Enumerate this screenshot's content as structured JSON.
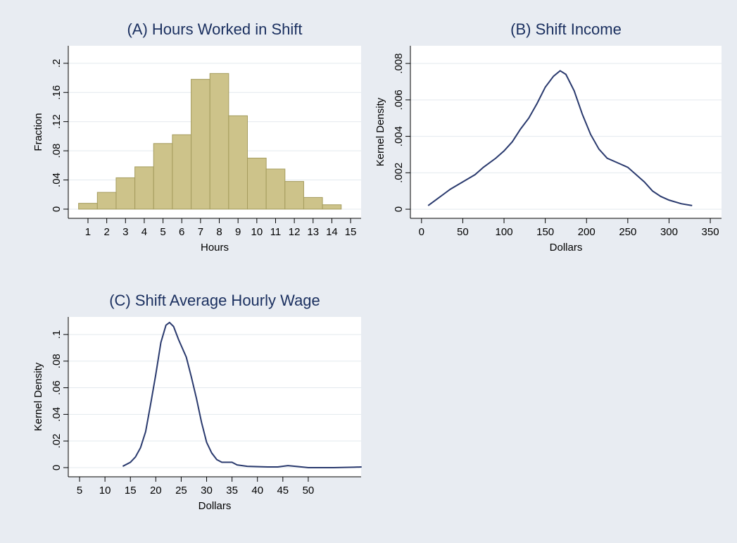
{
  "chart_data": [
    {
      "type": "histogram",
      "title": "(A) Hours Worked in Shift",
      "xlabel": "Hours",
      "ylabel": "Fraction",
      "bins": [
        0.5,
        1.5,
        2.5,
        3.5,
        4.5,
        5.5,
        6.5,
        7.5,
        8.5,
        9.5,
        10.5,
        11.5,
        12.5,
        13.5,
        14.5
      ],
      "values": [
        0.008,
        0.023,
        0.043,
        0.058,
        0.09,
        0.102,
        0.178,
        0.186,
        0.128,
        0.07,
        0.055,
        0.038,
        0.016,
        0.006
      ],
      "color": "#cdc38a",
      "edgecolor": "#a59c5e",
      "xlim": [
        -0.05,
        15.56
      ],
      "xticks": [
        1,
        2,
        3,
        4,
        5,
        6,
        7,
        8,
        9,
        10,
        11,
        12,
        13,
        14,
        15
      ],
      "ylim": [
        -0.0126,
        0.224
      ],
      "yticks": [
        0,
        {
          "value": 0.04,
          "label": ".04"
        },
        {
          "value": 0.08,
          "label": ".08"
        },
        {
          "value": 0.12,
          "label": ".12"
        },
        {
          "value": 0.16,
          "label": ".16"
        },
        {
          "value": 0.2,
          "label": ".2"
        }
      ],
      "grid": true
    },
    {
      "type": "line",
      "title": "(B) Shift Income",
      "xlabel": "Dollars",
      "ylabel": "Kernel Density",
      "color": "#2a3a6e",
      "x": [
        8,
        20,
        35,
        50,
        65,
        75,
        90,
        100,
        110,
        120,
        130,
        140,
        150,
        160,
        168,
        175,
        185,
        195,
        205,
        215,
        225,
        240,
        250,
        260,
        270,
        280,
        290,
        300,
        315,
        328
      ],
      "y": [
        0.0002,
        0.0006,
        0.0011,
        0.0015,
        0.0019,
        0.0023,
        0.0028,
        0.0032,
        0.0037,
        0.0044,
        0.005,
        0.0058,
        0.0067,
        0.0073,
        0.0076,
        0.0074,
        0.0065,
        0.0052,
        0.0041,
        0.0033,
        0.0028,
        0.0025,
        0.0023,
        0.0019,
        0.0015,
        0.001,
        0.0007,
        0.0005,
        0.0003,
        0.0002
      ],
      "xlim": [
        -13.5,
        363.6
      ],
      "xticks": [
        0,
        50,
        100,
        150,
        200,
        250,
        300,
        350
      ],
      "ylim": [
        -0.0005,
        0.00897
      ],
      "yticks": [
        0,
        {
          "value": 0.002,
          "label": ".002"
        },
        {
          "value": 0.004,
          "label": ".004"
        },
        {
          "value": 0.006,
          "label": ".006"
        },
        {
          "value": 0.008,
          "label": ".008"
        }
      ],
      "grid": true
    },
    {
      "type": "line",
      "title": "(C) Shift Average Hourly Wage",
      "xlabel": "Dollars",
      "ylabel": "Kernel Density",
      "color": "#2a3a6e",
      "x": [
        13.5,
        15,
        16,
        17,
        18,
        19,
        20,
        21,
        22,
        22.7,
        23.5,
        24.5,
        26,
        27,
        28,
        29,
        30,
        31,
        32,
        33,
        34,
        35,
        36,
        38,
        42,
        44,
        46,
        48,
        50,
        55,
        59,
        60.5
      ],
      "y": [
        0.001,
        0.004,
        0.008,
        0.015,
        0.027,
        0.048,
        0.07,
        0.094,
        0.107,
        0.109,
        0.106,
        0.096,
        0.083,
        0.068,
        0.052,
        0.034,
        0.019,
        0.011,
        0.006,
        0.004,
        0.004,
        0.004,
        0.002,
        0.001,
        0.0005,
        0.0005,
        0.0015,
        0.0008,
        0,
        0,
        0.0003,
        0.0005
      ],
      "xlim": [
        2.78,
        60.4
      ],
      "xticks": [
        5,
        10,
        15,
        20,
        25,
        30,
        35,
        40,
        45,
        50
      ],
      "ylim": [
        -0.0069,
        0.1132
      ],
      "yticks": [
        0,
        {
          "value": 0.02,
          "label": ".02"
        },
        {
          "value": 0.04,
          "label": ".04"
        },
        {
          "value": 0.06,
          "label": ".06"
        },
        {
          "value": 0.08,
          "label": ".08"
        },
        {
          "value": 0.1,
          "label": ".1"
        }
      ],
      "grid": true
    }
  ]
}
